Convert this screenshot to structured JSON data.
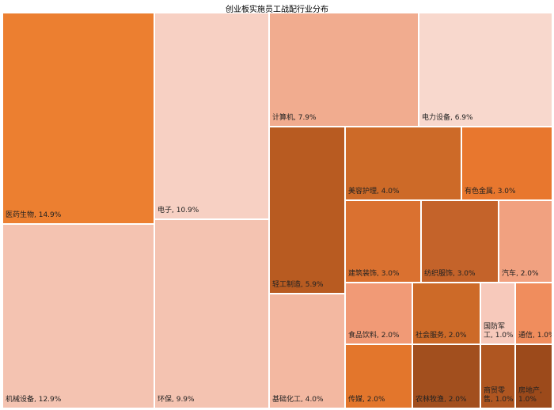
{
  "chart_data": {
    "type": "treemap",
    "title": "创业板实施员工战配行业分布",
    "items": [
      {
        "name": "医药生物",
        "value": 14.9,
        "label": "医药生物, 14.9%",
        "color": "#ec7f30"
      },
      {
        "name": "机械设备",
        "value": 12.9,
        "label": "机械设备, 12.9%",
        "color": "#f4c3b1"
      },
      {
        "name": "电子",
        "value": 10.9,
        "label": "电子, 10.9%",
        "color": "#f7d0c3"
      },
      {
        "name": "环保",
        "value": 9.9,
        "label": "环保, 9.9%",
        "color": "#f4c3b1"
      },
      {
        "name": "计算机",
        "value": 7.9,
        "label": "计算机, 7.9%",
        "color": "#f1ac8f"
      },
      {
        "name": "电力设备",
        "value": 6.9,
        "label": "电力设备, 6.9%",
        "color": "#f8d8cd"
      },
      {
        "name": "轻工制造",
        "value": 5.9,
        "label": "轻工制造, 5.9%",
        "color": "#b85b21"
      },
      {
        "name": "基础化工",
        "value": 4.0,
        "label": "基础化工, 4.0%",
        "color": "#f3b8a1"
      },
      {
        "name": "美容护理",
        "value": 4.0,
        "label": "美容护理, 4.0%",
        "color": "#cd6a28"
      },
      {
        "name": "有色金属",
        "value": 3.0,
        "label": "有色金属, 3.0%",
        "color": "#e8772e"
      },
      {
        "name": "建筑装饰",
        "value": 3.0,
        "label": "建筑装饰, 3.0%",
        "color": "#da7130"
      },
      {
        "name": "纺织服饰",
        "value": 3.0,
        "label": "纺织服饰, 3.0%",
        "color": "#c4632a"
      },
      {
        "name": "汽车",
        "value": 2.0,
        "label": "汽车, 2.0%",
        "color": "#f1a180"
      },
      {
        "name": "食品饮料",
        "value": 2.0,
        "label": "食品饮料, 2.0%",
        "color": "#f19a76"
      },
      {
        "name": "社会服务",
        "value": 2.0,
        "label": "社会服务, 2.0%",
        "color": "#cd6a28"
      },
      {
        "name": "国防军工",
        "value": 1.0,
        "label": "国防军工, 1.0%",
        "color": "#f7c9bb"
      },
      {
        "name": "通信",
        "value": 1.0,
        "label": "通信, 1.0%",
        "color": "#f08d5d"
      },
      {
        "name": "传媒",
        "value": 2.0,
        "label": "传媒, 2.0%",
        "color": "#e3762c"
      },
      {
        "name": "农林牧渔",
        "value": 2.0,
        "label": "农林牧渔, 2.0%",
        "color": "#a24f1e"
      },
      {
        "name": "商贸零售",
        "value": 1.0,
        "label": "商贸零售, 1.0%",
        "color": "#af5621"
      },
      {
        "name": "房地产",
        "value": 1.0,
        "label": "房地产, 1.0%",
        "color": "#9c4a1b"
      }
    ]
  }
}
